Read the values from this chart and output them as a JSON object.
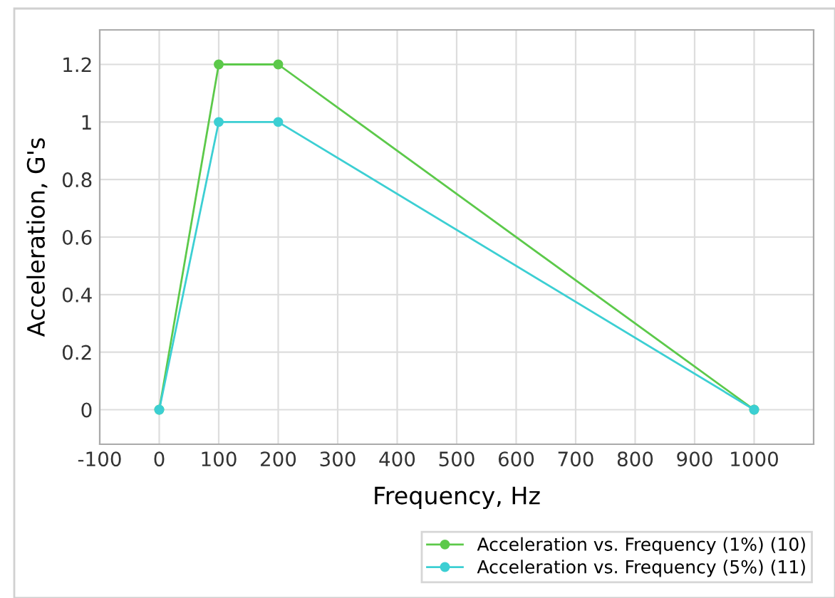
{
  "chart_data": {
    "type": "line",
    "xlabel": "Frequency, Hz",
    "ylabel": "Acceleration, G's",
    "x": [
      0,
      100,
      200,
      1000
    ],
    "series": [
      {
        "name": "Acceleration vs. Frequency (1%) (10)",
        "color": "#5cc94a",
        "values": [
          0,
          1.2,
          1.2,
          0
        ]
      },
      {
        "name": "Acceleration vs. Frequency (5%) (11)",
        "color": "#3ccfd3",
        "values": [
          0,
          1,
          1,
          0
        ]
      }
    ],
    "xlim": [
      -100,
      1100
    ],
    "xticks": [
      -100,
      0,
      100,
      200,
      300,
      400,
      500,
      600,
      700,
      800,
      900,
      1000
    ],
    "ylim": [
      -0.12,
      1.32
    ],
    "yticks": [
      0,
      0.2,
      0.4,
      0.6,
      0.8,
      1,
      1.2
    ],
    "grid": true,
    "legend": "bottom right",
    "marker": "circle",
    "line_style": "solid"
  }
}
